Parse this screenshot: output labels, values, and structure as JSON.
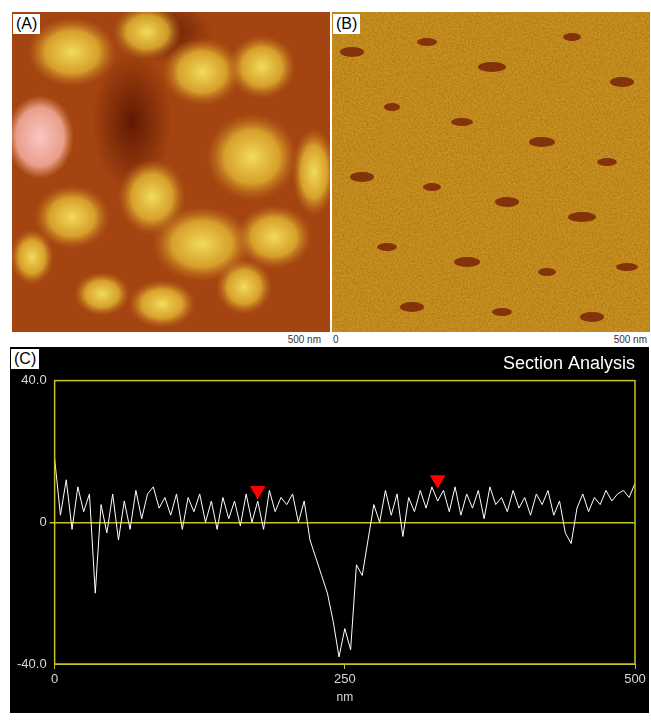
{
  "images": [
    {
      "label": "(A)",
      "scale_labels": [
        "500 nm"
      ]
    },
    {
      "label": "(B)",
      "scale_labels": [
        "0",
        "500 nm"
      ]
    }
  ],
  "chart_data": {
    "type": "line",
    "panel_label": "(C)",
    "title": "Section Analysis",
    "x_label": "nm",
    "color": "#ffffff",
    "x": [
      0,
      5,
      10,
      15,
      20,
      25,
      30,
      35,
      40,
      45,
      50,
      55,
      60,
      65,
      70,
      75,
      80,
      85,
      90,
      95,
      100,
      105,
      110,
      115,
      120,
      125,
      130,
      135,
      140,
      145,
      150,
      155,
      160,
      165,
      170,
      175,
      180,
      185,
      190,
      195,
      200,
      205,
      210,
      215,
      220,
      225,
      230,
      235,
      240,
      245,
      250,
      255,
      260,
      265,
      270,
      275,
      280,
      285,
      290,
      295,
      300,
      305,
      310,
      315,
      320,
      325,
      330,
      335,
      340,
      345,
      350,
      355,
      360,
      365,
      370,
      375,
      380,
      385,
      390,
      395,
      400,
      405,
      410,
      415,
      420,
      425,
      430,
      435,
      440,
      445,
      450,
      455,
      460,
      465,
      470,
      475,
      480,
      485,
      490,
      495,
      500
    ],
    "values": [
      18,
      2,
      12,
      -2,
      10,
      3,
      8,
      -20,
      5,
      -3,
      8,
      -5,
      6,
      -2,
      9,
      1,
      8,
      10,
      4,
      7,
      2,
      8,
      -2,
      7,
      3,
      8,
      0,
      6,
      -2,
      7,
      1,
      6,
      -1,
      8,
      0,
      6,
      -2,
      9,
      3,
      7,
      5,
      8,
      0,
      6,
      -5,
      -10,
      -15,
      -20,
      -28,
      -38,
      -30,
      -36,
      -12,
      -15,
      -5,
      5,
      0,
      9,
      2,
      8,
      -4,
      7,
      3,
      9,
      4,
      10,
      6,
      9,
      3,
      10,
      2,
      8,
      4,
      9,
      1,
      10,
      5,
      7,
      3,
      9,
      4,
      7,
      2,
      8,
      5,
      9,
      2,
      6,
      -3,
      -6,
      4,
      8,
      3,
      7,
      5,
      9,
      6,
      8,
      9,
      7,
      11
    ],
    "xlim": [
      0,
      500
    ],
    "xticks": [
      0,
      250,
      500
    ],
    "ylim": [
      -40,
      40
    ],
    "yticks": [
      {
        "value": -40,
        "label": "-40.0"
      },
      0,
      {
        "value": 40,
        "label": "40.0"
      }
    ],
    "cursors": {
      "x": [
        175,
        330
      ],
      "y": [
        9,
        12
      ],
      "color": "#ff0000",
      "marker": "triangle_down"
    }
  }
}
